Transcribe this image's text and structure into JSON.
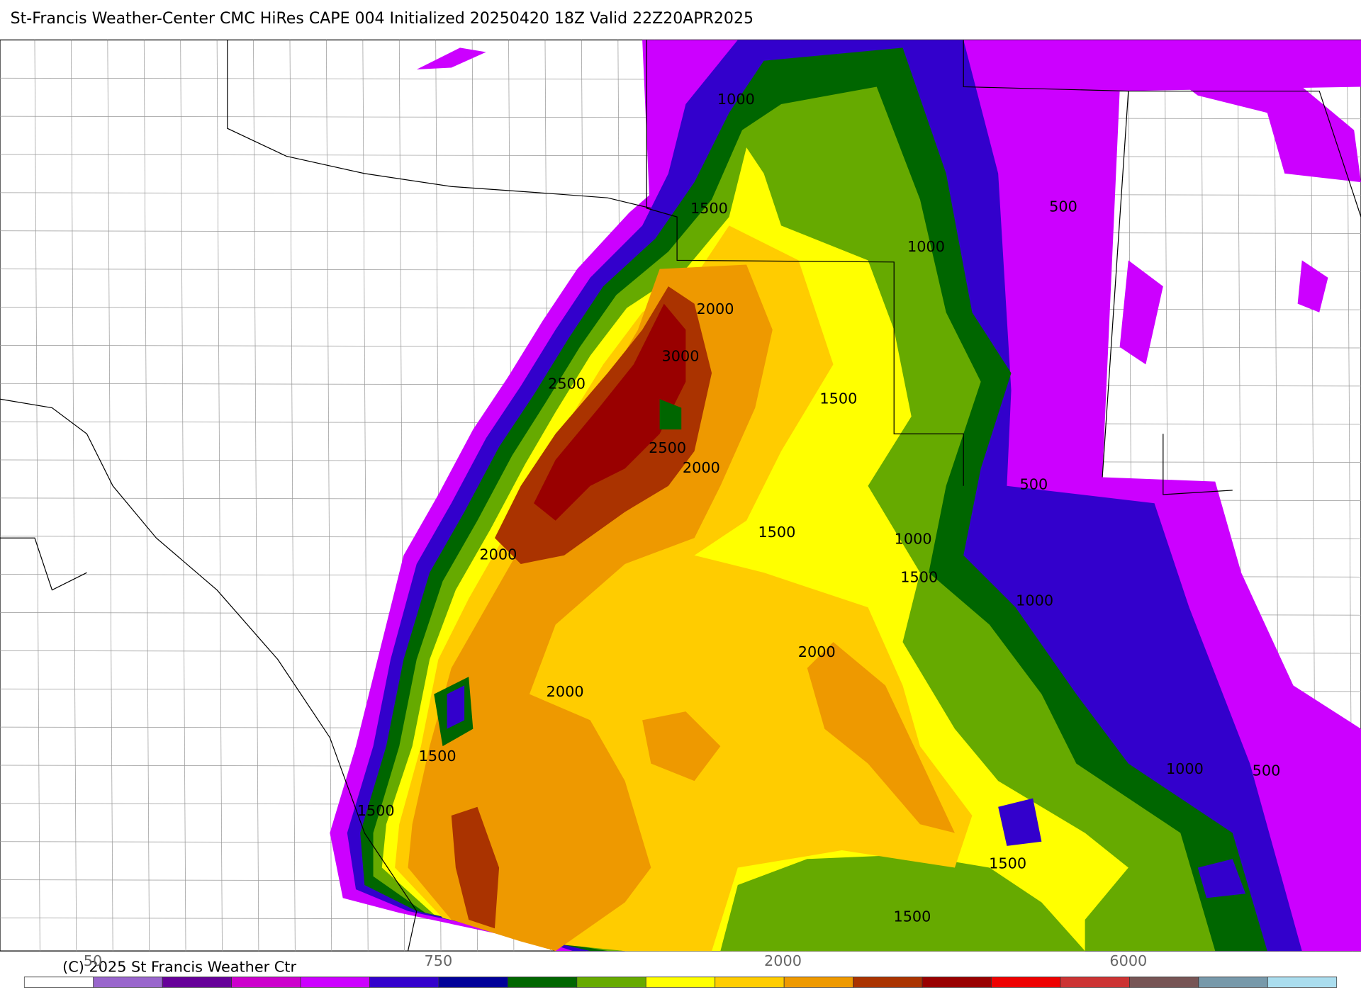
{
  "header": {
    "title": "St-Francis Weather-Center CMC HiRes CAPE  004 Initialized 20250420 18Z Valid 22Z20APR2025"
  },
  "map": {
    "contour_labels": [
      "1000",
      "1500",
      "1000",
      "2000",
      "3000",
      "2500",
      "1500",
      "2500",
      "2000",
      "500",
      "500",
      "1500",
      "1000",
      "1500",
      "1000",
      "2000",
      "2000",
      "2000",
      "1500",
      "1500",
      "1000",
      "500",
      "1500",
      "1500"
    ]
  },
  "colorbar": {
    "labels": [
      "50",
      "750",
      "2000",
      "6000"
    ],
    "colors": [
      "#ffffff",
      "#9966cc",
      "#660099",
      "#cc00cc",
      "#cc00ff",
      "#3300cc",
      "#000099",
      "#006600",
      "#66aa00",
      "#ffff00",
      "#ffcc00",
      "#ee9900",
      "#aa3300",
      "#990000",
      "#ee0000",
      "#cc3333",
      "#775555",
      "#7799aa",
      "#aaddee"
    ]
  },
  "footer": {
    "copyright": "(C) 2025 St Francis Weather Ctr"
  }
}
